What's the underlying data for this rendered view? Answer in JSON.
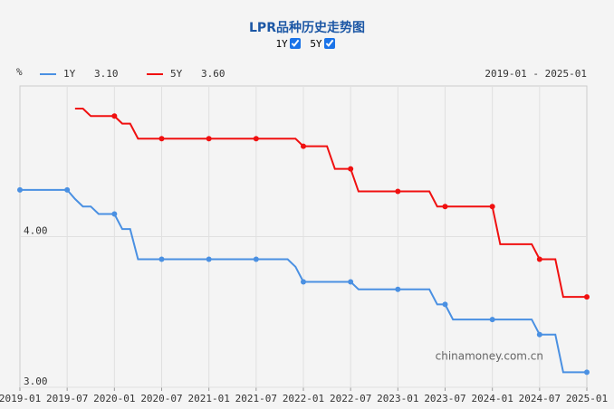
{
  "chart_data": {
    "type": "line",
    "title": "LPR品种历史走势图",
    "toggles": [
      "1Y",
      "5Y"
    ],
    "unit": "%",
    "date_range": "2019-01 - 2025-01",
    "watermark": "chinamoney.com.cn",
    "x": [
      "2019-01",
      null,
      null,
      null,
      null,
      null,
      "2019-07",
      null,
      null,
      null,
      null,
      null,
      "2020-01",
      null,
      null,
      null,
      null,
      null,
      "2020-07",
      null,
      null,
      null,
      null,
      null,
      "2021-01",
      null,
      null,
      null,
      null,
      null,
      "2021-07",
      null,
      null,
      null,
      null,
      null,
      "2022-01",
      null,
      null,
      null,
      null,
      null,
      "2022-07",
      null,
      null,
      null,
      null,
      null,
      "2023-01",
      null,
      null,
      null,
      null,
      null,
      "2023-07",
      null,
      null,
      null,
      null,
      null,
      "2024-01",
      null,
      null,
      null,
      null,
      null,
      "2024-07",
      null,
      null,
      null,
      null,
      null,
      "2025-01"
    ],
    "series": [
      {
        "name": "1Y",
        "latest": "3.10",
        "color": "#4a90e2",
        "values": [
          4.31,
          4.31,
          4.31,
          4.31,
          4.31,
          4.31,
          4.31,
          4.25,
          4.2,
          4.2,
          4.15,
          4.15,
          4.15,
          4.05,
          4.05,
          3.85,
          3.85,
          3.85,
          3.85,
          3.85,
          3.85,
          3.85,
          3.85,
          3.85,
          3.85,
          3.85,
          3.85,
          3.85,
          3.85,
          3.85,
          3.85,
          3.85,
          3.85,
          3.85,
          3.85,
          3.8,
          3.7,
          3.7,
          3.7,
          3.7,
          3.7,
          3.7,
          3.7,
          3.65,
          3.65,
          3.65,
          3.65,
          3.65,
          3.65,
          3.65,
          3.65,
          3.65,
          3.65,
          3.55,
          3.55,
          3.45,
          3.45,
          3.45,
          3.45,
          3.45,
          3.45,
          3.45,
          3.45,
          3.45,
          3.45,
          3.45,
          3.35,
          3.35,
          3.35,
          3.1,
          3.1,
          3.1,
          3.1
        ]
      },
      {
        "name": "5Y",
        "latest": "3.60",
        "color": "#f01010",
        "values": [
          null,
          null,
          null,
          null,
          null,
          null,
          null,
          4.85,
          4.85,
          4.8,
          4.8,
          4.8,
          4.8,
          4.75,
          4.75,
          4.65,
          4.65,
          4.65,
          4.65,
          4.65,
          4.65,
          4.65,
          4.65,
          4.65,
          4.65,
          4.65,
          4.65,
          4.65,
          4.65,
          4.65,
          4.65,
          4.65,
          4.65,
          4.65,
          4.65,
          4.65,
          4.6,
          4.6,
          4.6,
          4.6,
          4.45,
          4.45,
          4.45,
          4.3,
          4.3,
          4.3,
          4.3,
          4.3,
          4.3,
          4.3,
          4.3,
          4.3,
          4.3,
          4.2,
          4.2,
          4.2,
          4.2,
          4.2,
          4.2,
          4.2,
          4.2,
          3.95,
          3.95,
          3.95,
          3.95,
          3.95,
          3.85,
          3.85,
          3.85,
          3.6,
          3.6,
          3.6,
          3.6
        ]
      }
    ],
    "ylim": [
      3,
      5
    ],
    "yticks": [
      {
        "value": 3,
        "label": "3.00"
      },
      {
        "value": 4,
        "label": "4.00"
      }
    ],
    "grid": true
  }
}
